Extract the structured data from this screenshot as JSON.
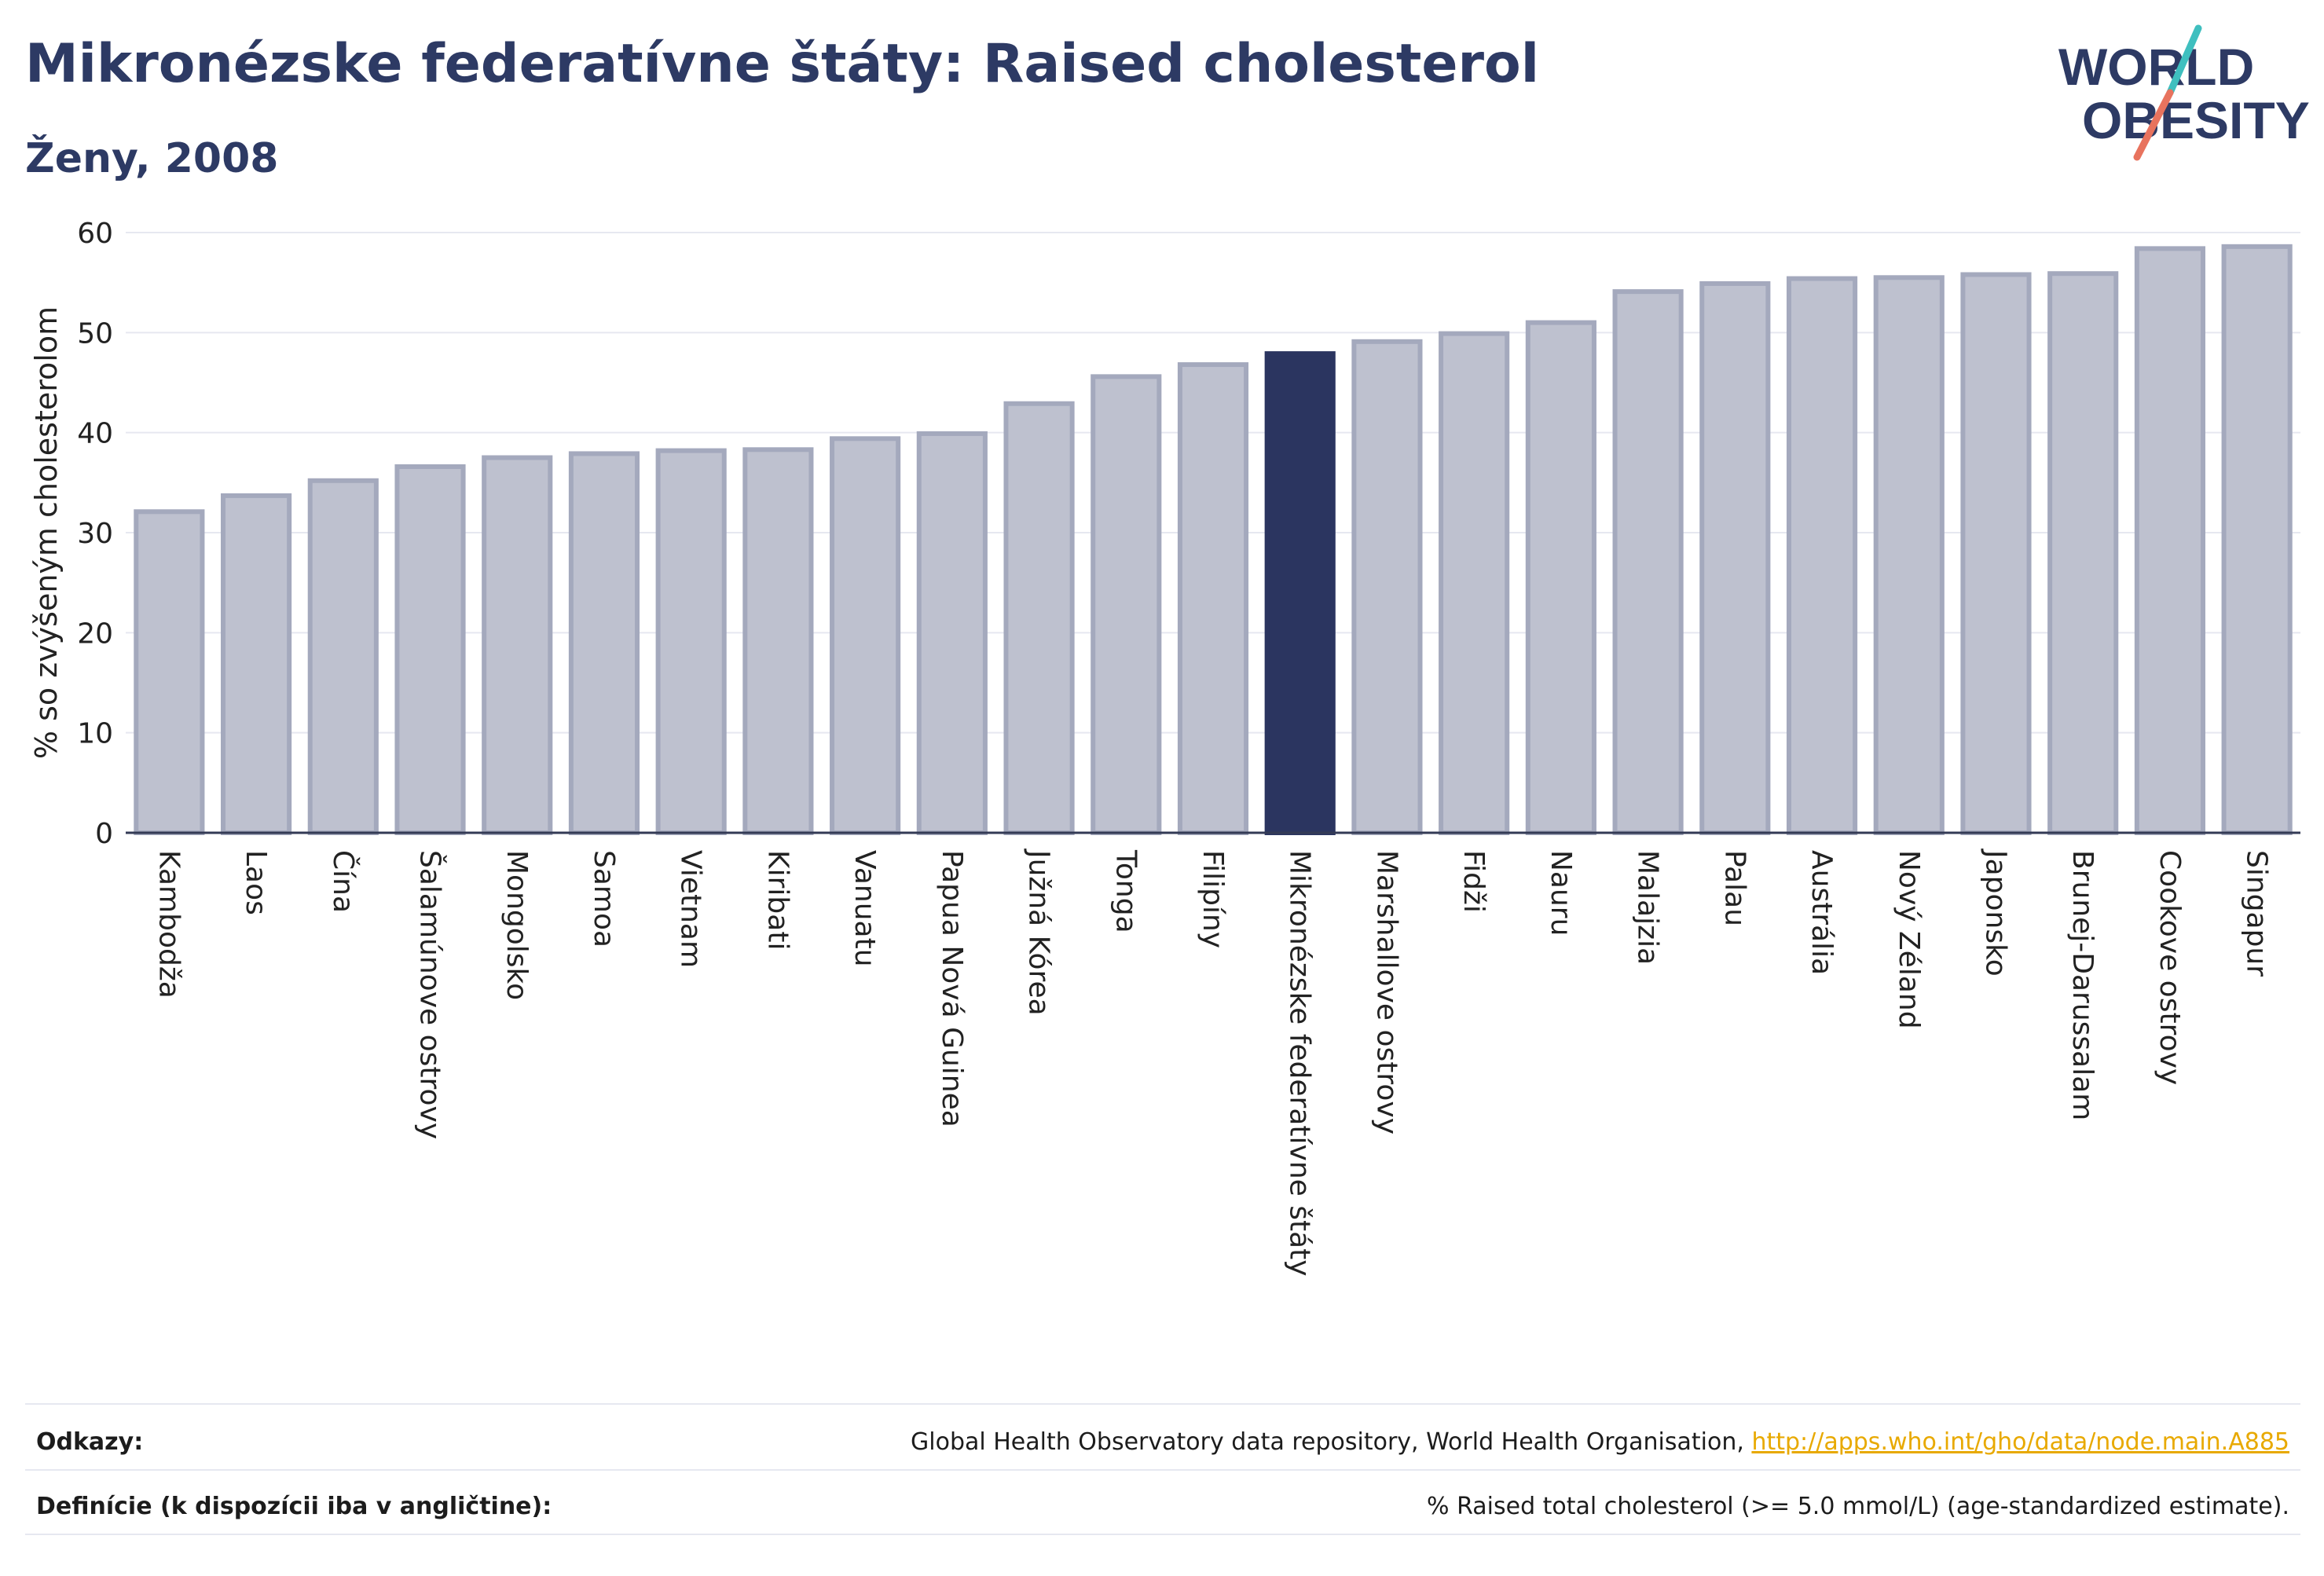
{
  "header": {
    "title": "Mikronézske federatívne štáty: Raised cholesterol",
    "subtitle": "Ženy, 2008"
  },
  "logo": {
    "line1": "WORLD",
    "line2": "OBESITY"
  },
  "colors": {
    "bar_default": "#bec1cf",
    "bar_default_stroke": "#a4a9bd",
    "bar_highlight": "#2b3560",
    "text_primary": "#2d3a64",
    "grid": "#e6e8f0",
    "link": "#e8a900",
    "logo_teal": "#3fbfbf",
    "logo_coral": "#e8735e"
  },
  "chart_data": {
    "type": "bar",
    "title": "Mikronézske federatívne štáty: Raised cholesterol",
    "subtitle": "Ženy, 2008",
    "ylabel": "% so zvýšeným cholesterolom",
    "xlabel": "",
    "ylim": [
      0,
      60
    ],
    "yticks": [
      0,
      10,
      20,
      30,
      40,
      50,
      60
    ],
    "grid": true,
    "highlight": "Mikronézske federatívne štáty",
    "categories": [
      "Kambodža",
      "Laos",
      "Čína",
      "Šalamúnove ostrovy",
      "Mongolsko",
      "Samoa",
      "Vietnam",
      "Kiribati",
      "Vanuatu",
      "Papua Nová Guinea",
      "Južná Kórea",
      "Tonga",
      "Filipíny",
      "Mikronézske federatívne štáty",
      "Marshallove ostrovy",
      "Fidži",
      "Nauru",
      "Malajzia",
      "Palau",
      "Austrália",
      "Nový Zéland",
      "Japonsko",
      "Brunej-Darussalam",
      "Cookove ostrovy",
      "Singapur"
    ],
    "values": [
      32.1,
      33.7,
      35.2,
      36.6,
      37.5,
      37.9,
      38.2,
      38.3,
      39.4,
      39.9,
      42.9,
      45.6,
      46.8,
      47.9,
      49.1,
      49.9,
      51.0,
      54.1,
      54.9,
      55.4,
      55.5,
      55.8,
      55.9,
      58.4,
      58.6
    ]
  },
  "footer": {
    "references_label": "Odkazy:",
    "references_text": "Global Health Observatory data repository, World Health Organisation, ",
    "references_link": "http://apps.who.int/gho/data/node.main.A885",
    "definitions_label": "Definície (k dispozícii iba v angličtine):",
    "definitions_text": "% Raised total cholesterol (>= 5.0 mmol/L) (age-standardized estimate)."
  }
}
